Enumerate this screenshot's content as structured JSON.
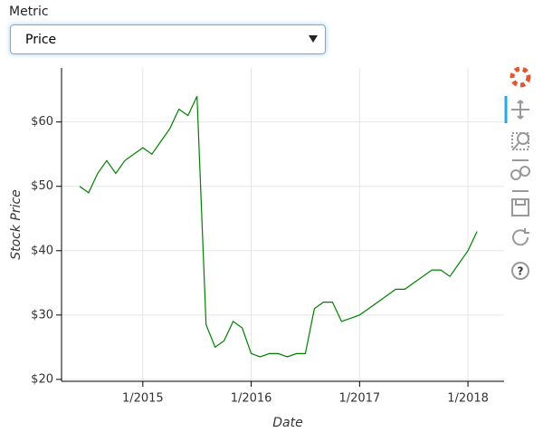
{
  "widget": {
    "label": "Metric",
    "selected": "Price"
  },
  "chart_data": {
    "type": "line",
    "x_label": "Date",
    "y_label": "Stock Price",
    "x": [
      "6/2014",
      "7/2014",
      "8/2014",
      "9/2014",
      "10/2014",
      "11/2014",
      "12/2014",
      "1/2015",
      "2/2015",
      "3/2015",
      "4/2015",
      "5/2015",
      "6/2015",
      "7/2015",
      "8/2015",
      "9/2015",
      "10/2015",
      "11/2015",
      "12/2015",
      "1/2016",
      "2/2016",
      "3/2016",
      "4/2016",
      "5/2016",
      "6/2016",
      "7/2016",
      "8/2016",
      "9/2016",
      "10/2016",
      "11/2016",
      "12/2016",
      "1/2017",
      "2/2017",
      "3/2017",
      "4/2017",
      "5/2017",
      "6/2017",
      "7/2017",
      "8/2017",
      "9/2017",
      "10/2017",
      "11/2017",
      "12/2017",
      "1/2018",
      "2/2018"
    ],
    "values": [
      50,
      49,
      52,
      54,
      52,
      54,
      55,
      56,
      55,
      57,
      59,
      62,
      61,
      64,
      28.5,
      25,
      26,
      29,
      28,
      24,
      23.5,
      24,
      24,
      23.5,
      24,
      24,
      31,
      32,
      32,
      29,
      29.5,
      30,
      31,
      32,
      33,
      34,
      34,
      35,
      36,
      37,
      37,
      36,
      38,
      40,
      43
    ],
    "color": "#008000",
    "xlim": [
      "4/2014",
      "5/2018"
    ],
    "xticks": [
      "1/2015",
      "1/2016",
      "1/2017",
      "1/2018"
    ],
    "ylim": [
      19.7,
      68.4
    ],
    "yticks": [
      {
        "value": 20,
        "label": "$20"
      },
      {
        "value": 30,
        "label": "$30"
      },
      {
        "value": 40,
        "label": "$40"
      },
      {
        "value": 50,
        "label": "$50"
      },
      {
        "value": 60,
        "label": "$60"
      }
    ],
    "grid": true
  }
}
